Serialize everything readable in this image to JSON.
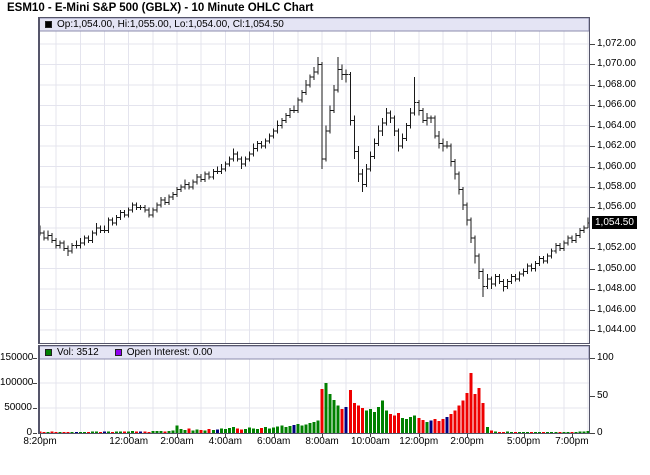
{
  "title": "ESM10 - E-Mini S&P 500 (GBLX) - 10 Minute OHLC Chart",
  "main_panel": {
    "legend": {
      "marker_color": "#000000",
      "strip_bg": "#e4e4f4",
      "text": "Op:1,054.00, Hi:1,055.00, Lo:1,054.00, Cl:1,054.50"
    },
    "y_axis": {
      "min": 1044,
      "max": 1072,
      "step": 2,
      "labels": [
        {
          "v": 1072,
          "t": "1,072.00"
        },
        {
          "v": 1070,
          "t": "1,070.00"
        },
        {
          "v": 1068,
          "t": "1,068.00"
        },
        {
          "v": 1066,
          "t": "1,066.00"
        },
        {
          "v": 1064,
          "t": "1,064.00"
        },
        {
          "v": 1062,
          "t": "1,062.00"
        },
        {
          "v": 1060,
          "t": "1,060.00"
        },
        {
          "v": 1058,
          "t": "1,058.00"
        },
        {
          "v": 1056,
          "t": "1,056.00"
        },
        {
          "v": 1052,
          "t": "1,052.00"
        },
        {
          "v": 1050,
          "t": "1,050.00"
        },
        {
          "v": 1048,
          "t": "1,048.00"
        },
        {
          "v": 1046,
          "t": "1,046.00"
        },
        {
          "v": 1044,
          "t": "1,044.00"
        }
      ],
      "current_price": {
        "v": 1054.5,
        "t": "1,054.50",
        "bg": "#000000",
        "fg": "#ffffff"
      }
    }
  },
  "volume_panel": {
    "strip_bg": "#e4e4f4",
    "legend_vol": {
      "color": "#008000",
      "text": "Vol: 3512"
    },
    "legend_oi": {
      "color": "#9000f0",
      "text": "Open Interest: 0.00"
    },
    "left_axis": {
      "labels": [
        {
          "v": 150000,
          "t": "150000"
        },
        {
          "v": 100000,
          "t": "100000"
        },
        {
          "v": 50000,
          "t": "50000"
        },
        {
          "v": 0,
          "t": "0"
        }
      ]
    },
    "right_axis": {
      "max": 100,
      "labels": [
        {
          "v": 100,
          "t": "100"
        },
        {
          "v": 50,
          "t": "50"
        },
        {
          "v": 0,
          "t": "0"
        }
      ]
    }
  },
  "x_axis": {
    "ticks": [
      {
        "bar": 0,
        "label": "8:20pm"
      },
      {
        "bar": 22,
        "label": "12:00am"
      },
      {
        "bar": 34,
        "label": "2:00am"
      },
      {
        "bar": 46,
        "label": "4:00am"
      },
      {
        "bar": 58,
        "label": "6:00am"
      },
      {
        "bar": 70,
        "label": "8:00am"
      },
      {
        "bar": 82,
        "label": "10:00am"
      },
      {
        "bar": 94,
        "label": "12:00pm"
      },
      {
        "bar": 106,
        "label": "2:00pm"
      },
      {
        "bar": 120,
        "label": "5:00pm"
      },
      {
        "bar": 132,
        "label": "7:00pm"
      }
    ]
  },
  "chart_data": {
    "type": "ohlc",
    "symbol": "ESM10",
    "description": "E-Mini S&P 500 (GBLX)",
    "interval": "10 Minute",
    "price_axis_range": [
      1044,
      1072
    ],
    "volume_axis_range": [
      0,
      150000
    ],
    "open_interest_axis_range": [
      0,
      100
    ],
    "grid": true,
    "colors": {
      "ohlc": "#1a1a1a",
      "grid": "#e4e4ee",
      "border": "#55556a",
      "vol_up": "#008000",
      "vol_down": "#ee0000",
      "vol_flat": "#000080"
    },
    "last_bar": {
      "open": 1054.0,
      "high": 1055.0,
      "low": 1054.0,
      "close": 1054.5,
      "volume": 3512,
      "open_interest": 0.0
    },
    "bars_format": [
      "open",
      "high",
      "low",
      "close",
      "volume"
    ],
    "bars": [
      [
        1054,
        1054.25,
        1053.25,
        1053.5,
        3000
      ],
      [
        1053.5,
        1053.75,
        1052.75,
        1053,
        2500
      ],
      [
        1053,
        1053.75,
        1052.75,
        1053.25,
        2000
      ],
      [
        1053.25,
        1053.5,
        1052.5,
        1052.75,
        2800
      ],
      [
        1052.75,
        1053,
        1052,
        1052.25,
        1500
      ],
      [
        1052.25,
        1052.75,
        1052,
        1052.5,
        1200
      ],
      [
        1052.5,
        1052.75,
        1051.75,
        1052,
        1800
      ],
      [
        1052,
        1052.25,
        1051.25,
        1051.75,
        2200
      ],
      [
        1051.75,
        1052.5,
        1051.5,
        1052.25,
        1600
      ],
      [
        1052.25,
        1052.75,
        1052,
        1052.25,
        2000
      ],
      [
        1052.25,
        1053,
        1052,
        1052.5,
        1800
      ],
      [
        1052.5,
        1053.25,
        1052.25,
        1053,
        2500
      ],
      [
        1053,
        1053.25,
        1052.5,
        1052.75,
        2000
      ],
      [
        1052.75,
        1053.75,
        1052.5,
        1053.5,
        3000
      ],
      [
        1053.5,
        1054.5,
        1053.25,
        1054,
        2600
      ],
      [
        1054,
        1054.25,
        1053.5,
        1053.75,
        2200
      ],
      [
        1053.75,
        1054.25,
        1053.5,
        1053.75,
        3200
      ],
      [
        1053.75,
        1055,
        1053.5,
        1054.75,
        2800
      ],
      [
        1054.75,
        1055,
        1054.25,
        1054.5,
        2400
      ],
      [
        1054.5,
        1055.25,
        1054.25,
        1055,
        3000
      ],
      [
        1055,
        1055.75,
        1054.75,
        1055.5,
        3500
      ],
      [
        1055.5,
        1055.75,
        1055,
        1055.25,
        2600
      ],
      [
        1055.25,
        1056,
        1055,
        1055.75,
        3200
      ],
      [
        1055.75,
        1056.5,
        1055.5,
        1056.25,
        4000
      ],
      [
        1056.25,
        1056.5,
        1055.75,
        1056,
        3000
      ],
      [
        1056,
        1056.25,
        1055.75,
        1056,
        3500
      ],
      [
        1056,
        1056.25,
        1055.5,
        1055.75,
        2800
      ],
      [
        1055.75,
        1056,
        1055,
        1055.25,
        2500
      ],
      [
        1055.25,
        1056,
        1055,
        1055.75,
        3800
      ],
      [
        1055.75,
        1056.5,
        1055.5,
        1056.25,
        4200
      ],
      [
        1056.25,
        1057,
        1056,
        1056.75,
        3600
      ],
      [
        1056.75,
        1057,
        1056.25,
        1056.5,
        3000
      ],
      [
        1056.5,
        1057.25,
        1056.25,
        1057,
        4500
      ],
      [
        1057,
        1057.5,
        1056.75,
        1057.25,
        5000
      ],
      [
        1057.25,
        1058,
        1057,
        1057.75,
        15000
      ],
      [
        1057.75,
        1058.25,
        1057.5,
        1058,
        8000
      ],
      [
        1058,
        1058.75,
        1057.75,
        1058.25,
        6000
      ],
      [
        1058.25,
        1058.5,
        1057.75,
        1058,
        9000
      ],
      [
        1058,
        1058.75,
        1057.75,
        1058.5,
        5000
      ],
      [
        1058.5,
        1059.25,
        1058.25,
        1059,
        7000
      ],
      [
        1059,
        1059.25,
        1058.5,
        1058.75,
        6500
      ],
      [
        1058.75,
        1059.5,
        1058.5,
        1059.25,
        5500
      ],
      [
        1059.25,
        1059.5,
        1058.75,
        1059,
        8000
      ],
      [
        1059,
        1059.75,
        1058.75,
        1059.5,
        6000
      ],
      [
        1059.5,
        1060,
        1059.25,
        1059.5,
        7000
      ],
      [
        1059.5,
        1060.25,
        1059.25,
        1059.75,
        9000
      ],
      [
        1059.75,
        1060.5,
        1059.5,
        1060.25,
        8000
      ],
      [
        1060.25,
        1061,
        1060,
        1060.75,
        10000
      ],
      [
        1060.75,
        1061.75,
        1060.5,
        1061.25,
        12000
      ],
      [
        1061.25,
        1061.5,
        1060.5,
        1060.75,
        9000
      ],
      [
        1060.75,
        1061,
        1059.75,
        1060.25,
        7000
      ],
      [
        1060.25,
        1061,
        1060,
        1060.75,
        8500
      ],
      [
        1060.75,
        1061.5,
        1060.5,
        1061.25,
        11000
      ],
      [
        1061.25,
        1062.25,
        1061,
        1061.75,
        9500
      ],
      [
        1061.75,
        1062.5,
        1061.5,
        1062.25,
        8000
      ],
      [
        1062.25,
        1062.5,
        1061.75,
        1062,
        10500
      ],
      [
        1062,
        1062.75,
        1061.75,
        1062.5,
        12000
      ],
      [
        1062.5,
        1063.25,
        1062.25,
        1063,
        9000
      ],
      [
        1063,
        1063.75,
        1062.75,
        1063.5,
        11000
      ],
      [
        1063.5,
        1064.5,
        1063.25,
        1064,
        13000
      ],
      [
        1064,
        1064.75,
        1063.75,
        1064.5,
        15000
      ],
      [
        1064.5,
        1065.25,
        1064.25,
        1065,
        12000
      ],
      [
        1065,
        1065.75,
        1064.75,
        1065.5,
        14000
      ],
      [
        1065.5,
        1066,
        1065.25,
        1065.5,
        16000
      ],
      [
        1065.5,
        1066.75,
        1065.25,
        1066.5,
        18000
      ],
      [
        1066.5,
        1067.5,
        1066.25,
        1067.25,
        15000
      ],
      [
        1067.25,
        1068.5,
        1067,
        1068,
        17000
      ],
      [
        1068,
        1069,
        1067.75,
        1068.75,
        20000
      ],
      [
        1068.75,
        1069.75,
        1068.5,
        1069.25,
        22000
      ],
      [
        1069.25,
        1070.75,
        1069,
        1070,
        25000
      ],
      [
        1070,
        1070.25,
        1059.75,
        1060.75,
        88000
      ],
      [
        1060.75,
        1064,
        1060.5,
        1063.5,
        100000
      ],
      [
        1063.5,
        1066,
        1063.25,
        1065.5,
        78000
      ],
      [
        1065.5,
        1068,
        1065.25,
        1067.5,
        66000
      ],
      [
        1067.5,
        1070.75,
        1067.25,
        1069.5,
        55000
      ],
      [
        1069.5,
        1070,
        1068.5,
        1069,
        48000
      ],
      [
        1069,
        1069.5,
        1068.25,
        1069,
        52000
      ],
      [
        1069,
        1069.25,
        1064,
        1064.5,
        86000
      ],
      [
        1064.5,
        1065,
        1060.75,
        1061.5,
        60000
      ],
      [
        1061.5,
        1062,
        1058.5,
        1059.25,
        55000
      ],
      [
        1059.25,
        1059.75,
        1057.5,
        1058.25,
        50000
      ],
      [
        1058.25,
        1060.25,
        1058,
        1059.75,
        45000
      ],
      [
        1059.75,
        1061.5,
        1059.5,
        1061,
        48000
      ],
      [
        1061,
        1062.75,
        1060.75,
        1062.25,
        42000
      ],
      [
        1062.25,
        1064,
        1062,
        1063.5,
        52000
      ],
      [
        1063.5,
        1064.75,
        1063,
        1064.25,
        65000
      ],
      [
        1064.25,
        1065.75,
        1064,
        1065.25,
        45000
      ],
      [
        1065.25,
        1065.5,
        1064.25,
        1064.75,
        38000
      ],
      [
        1064.75,
        1065,
        1063,
        1063.5,
        35000
      ],
      [
        1063.5,
        1063.75,
        1061.5,
        1062,
        40000
      ],
      [
        1062,
        1063.25,
        1061.75,
        1062.75,
        30000
      ],
      [
        1062.75,
        1064.25,
        1062.5,
        1064,
        28000
      ],
      [
        1064,
        1065.75,
        1063.75,
        1065.25,
        32000
      ],
      [
        1065.25,
        1068.75,
        1065,
        1066.25,
        35000
      ],
      [
        1066.25,
        1066.5,
        1065,
        1065.5,
        30000
      ],
      [
        1065.5,
        1065.75,
        1064.25,
        1064.5,
        26000
      ],
      [
        1064.5,
        1065.25,
        1064,
        1064.75,
        22000
      ],
      [
        1064.75,
        1065,
        1064.25,
        1064.75,
        25000
      ],
      [
        1064.75,
        1065,
        1062.75,
        1063,
        28000
      ],
      [
        1063,
        1063.5,
        1061.75,
        1062.25,
        24000
      ],
      [
        1062.25,
        1062.75,
        1061.5,
        1062,
        28000
      ],
      [
        1062,
        1062.5,
        1061.75,
        1062,
        32000
      ],
      [
        1062,
        1062.25,
        1060,
        1060.5,
        38000
      ],
      [
        1060.5,
        1060.75,
        1058.75,
        1059.25,
        45000
      ],
      [
        1059.25,
        1059.5,
        1057.25,
        1057.75,
        55000
      ],
      [
        1057.75,
        1058,
        1055.75,
        1056.25,
        65000
      ],
      [
        1056.25,
        1056.5,
        1054.25,
        1054.75,
        80000
      ],
      [
        1054.75,
        1055,
        1052.5,
        1053,
        120000
      ],
      [
        1053,
        1053.25,
        1050.5,
        1051.25,
        78000
      ],
      [
        1051.25,
        1051.5,
        1049,
        1049.75,
        90000
      ],
      [
        1049.75,
        1050,
        1047.25,
        1048.25,
        60000
      ],
      [
        1048.25,
        1049.5,
        1048,
        1049,
        12000
      ],
      [
        1049,
        1049.25,
        1048,
        1048.5,
        5000
      ],
      [
        1048.5,
        1049.5,
        1048.25,
        1049.25,
        3000
      ],
      [
        1049.25,
        1049.5,
        1048.5,
        1048.75,
        2500
      ],
      [
        1048.75,
        1049,
        1047.75,
        1048.25,
        2000
      ],
      [
        1048.25,
        1049,
        1048,
        1048.75,
        3000
      ],
      [
        1048.75,
        1049.5,
        1048.5,
        1049.25,
        1500
      ],
      [
        1049.25,
        1049.5,
        1048.75,
        1049,
        2000
      ],
      [
        1049,
        1049.75,
        1048.75,
        1049.5,
        2500
      ],
      [
        1049.5,
        1050,
        1049.25,
        1049.75,
        1800
      ],
      [
        1049.75,
        1050.5,
        1049.5,
        1050.25,
        1200
      ],
      [
        1050.25,
        1050.5,
        1049.75,
        1050,
        1500
      ],
      [
        1050,
        1050.75,
        1049.75,
        1050.5,
        1000
      ],
      [
        1050.5,
        1051.25,
        1050.25,
        1051,
        2000
      ],
      [
        1051,
        1051.25,
        1050.5,
        1050.75,
        1500
      ],
      [
        1050.75,
        1051.5,
        1050.5,
        1051.25,
        1200
      ],
      [
        1051.25,
        1052,
        1051,
        1051.75,
        1800
      ],
      [
        1051.75,
        1052.5,
        1051.5,
        1052.25,
        1400
      ],
      [
        1052.25,
        1052.5,
        1051.75,
        1052,
        2500
      ],
      [
        1052,
        1052.75,
        1051.75,
        1052.5,
        2000
      ],
      [
        1052.5,
        1053.25,
        1052.25,
        1053,
        1600
      ],
      [
        1053,
        1053.25,
        1052.5,
        1052.75,
        1800
      ],
      [
        1052.75,
        1053.5,
        1052.5,
        1053.25,
        2200
      ],
      [
        1053.25,
        1054,
        1053,
        1053.75,
        3000
      ],
      [
        1053.75,
        1054.25,
        1053.5,
        1054,
        3500
      ],
      [
        1054,
        1055,
        1054,
        1054.5,
        3512
      ]
    ]
  }
}
